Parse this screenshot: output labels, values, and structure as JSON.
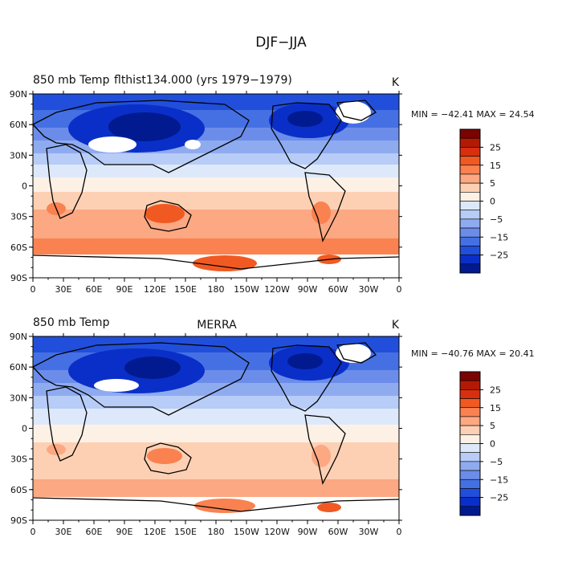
{
  "figure_title": "DJF−JJA",
  "colorbar": {
    "tick_labels": [
      "25",
      "15",
      "5",
      "0",
      "−5",
      "−15",
      "−25"
    ],
    "tick_values": [
      25,
      15,
      5,
      0,
      -5,
      -15,
      -25
    ],
    "colors": [
      "#7a0403",
      "#b31a05",
      "#d8300e",
      "#f05a22",
      "#f98250",
      "#fca882",
      "#fdd0b4",
      "#fdf1e6",
      "#dde9fa",
      "#b7ccf6",
      "#8fabf0",
      "#6b8de9",
      "#4570e3",
      "#214fdb",
      "#0a2fc8",
      "#011a8f"
    ]
  },
  "axes": {
    "x_ticks": [
      "0",
      "30E",
      "60E",
      "90E",
      "120E",
      "150E",
      "180",
      "150W",
      "120W",
      "90W",
      "60W",
      "30W",
      "0"
    ],
    "y_ticks": [
      "90N",
      "60N",
      "30N",
      "0",
      "30S",
      "60S",
      "90S"
    ]
  },
  "panels": [
    {
      "left_title": "850 mb Temp",
      "center_title": "flthist134.000 (yrs 1979−1979)",
      "units": "K",
      "stats": "MIN = −42.41 MAX =  24.54"
    },
    {
      "left_title": "850 mb Temp",
      "center_title": "MERRA",
      "units": "K",
      "stats": "MIN = −40.76 MAX =  20.41"
    }
  ],
  "chart_data": [
    {
      "type": "heatmap",
      "title": "850 mb Temp flthist134.000 (yrs 1979−1979)",
      "units": "K",
      "min": -42.41,
      "max": 24.54,
      "xlim": [
        0,
        360
      ],
      "ylim": [
        -90,
        90
      ],
      "grid": false,
      "zonal_mean_profile": [
        {
          "lat": 80,
          "value": -28
        },
        {
          "lat": 60,
          "value": -25
        },
        {
          "lat": 45,
          "value": -20
        },
        {
          "lat": 30,
          "value": -10
        },
        {
          "lat": 15,
          "value": -3
        },
        {
          "lat": 0,
          "value": 1
        },
        {
          "lat": -15,
          "value": 4
        },
        {
          "lat": -30,
          "value": 7
        },
        {
          "lat": -45,
          "value": 6
        },
        {
          "lat": -60,
          "value": 8
        },
        {
          "lat": -70,
          "value": 15
        }
      ]
    },
    {
      "type": "heatmap",
      "title": "850 mb Temp MERRA",
      "units": "K",
      "min": -40.76,
      "max": 20.41,
      "xlim": [
        0,
        360
      ],
      "ylim": [
        -90,
        90
      ],
      "grid": false,
      "zonal_mean_profile": [
        {
          "lat": 80,
          "value": -27
        },
        {
          "lat": 60,
          "value": -24
        },
        {
          "lat": 45,
          "value": -18
        },
        {
          "lat": 30,
          "value": -9
        },
        {
          "lat": 15,
          "value": -3
        },
        {
          "lat": 0,
          "value": 1
        },
        {
          "lat": -15,
          "value": 4
        },
        {
          "lat": -30,
          "value": 6
        },
        {
          "lat": -45,
          "value": 5
        },
        {
          "lat": -60,
          "value": 6
        },
        {
          "lat": -70,
          "value": 12
        }
      ]
    }
  ]
}
